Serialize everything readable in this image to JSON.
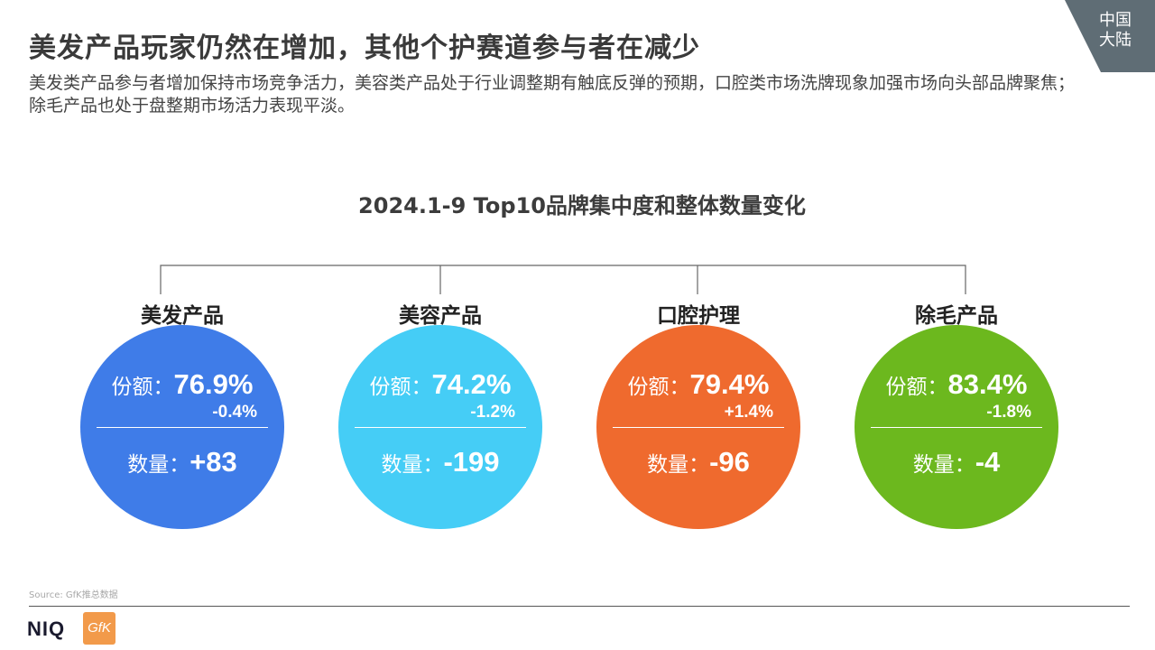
{
  "title": "美发产品玩家仍然在增加，其他个护赛道参与者在减少",
  "subtitle": "美发类产品参与者增加保持市场竞争活力，美容类产品处于行业调整期有触底反弹的预期，口腔类市场洗牌现象加强市场向头部品牌聚焦；除毛产品也处于盘整期市场活力表现平淡。",
  "corner_tag": {
    "line1": "中国",
    "line2": "大陆"
  },
  "chart_title": "2024.1-9 Top10品牌集中度和整体数量变化",
  "share_prefix": "份额：",
  "count_prefix": "数量：",
  "chart_data": {
    "type": "table",
    "title": "2024.1-9 Top10品牌集中度和整体数量变化",
    "categories": [
      "美发产品",
      "美容产品",
      "口腔护理",
      "除毛产品"
    ],
    "series": [
      {
        "name": "份额",
        "values": [
          "76.9%",
          "74.2%",
          "79.4%",
          "83.4%"
        ]
      },
      {
        "name": "份额变化",
        "values": [
          "-0.4%",
          "-1.2%",
          "+1.4%",
          "-1.8%"
        ]
      },
      {
        "name": "数量",
        "values": [
          "+83",
          "-199",
          "-96",
          "-4"
        ]
      }
    ],
    "colors": [
      "#3f7ce8",
      "#45cdf6",
      "#ef6a2e",
      "#6cb81e"
    ]
  },
  "items": [
    {
      "label": "美发产品",
      "share": "76.9%",
      "share_change": "-0.4%",
      "count": "+83",
      "color": "#3f7ce8"
    },
    {
      "label": "美容产品",
      "share": "74.2%",
      "share_change": "-1.2%",
      "count": "-199",
      "color": "#45cdf6"
    },
    {
      "label": "口腔护理",
      "share": "79.4%",
      "share_change": "+1.4%",
      "count": "-96",
      "color": "#ef6a2e"
    },
    {
      "label": "除毛产品",
      "share": "83.4%",
      "share_change": "-1.8%",
      "count": "-4",
      "color": "#6cb81e"
    }
  ],
  "source": "Source: GfK推总数据",
  "logos": {
    "niq": "NIQ",
    "gfk": "GfK"
  }
}
